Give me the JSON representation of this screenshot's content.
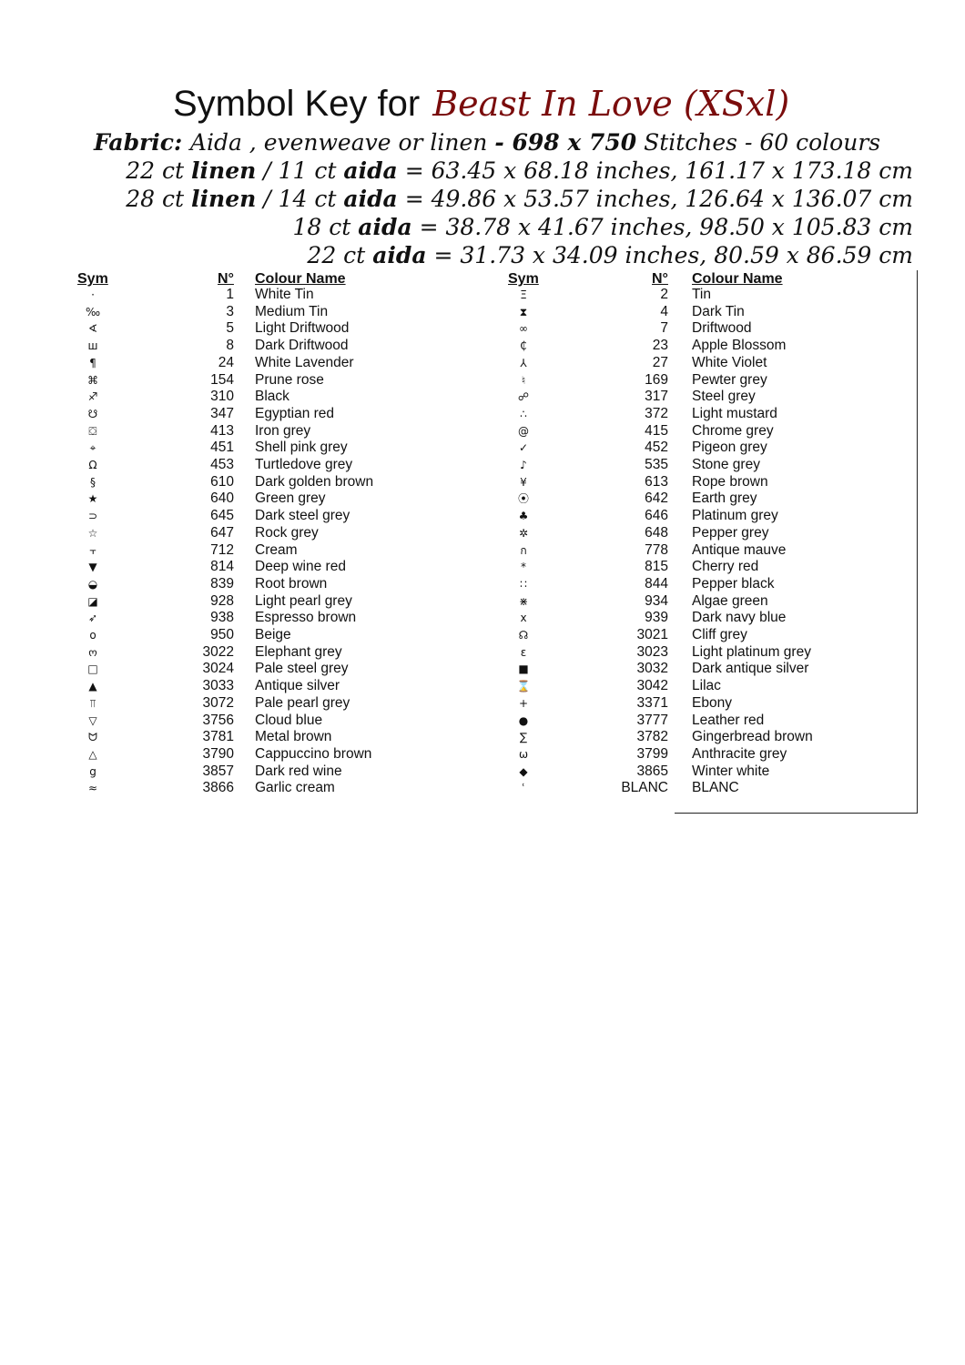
{
  "title": {
    "prefix": "Symbol Key for",
    "pattern": "Beast In Love (XSxl)",
    "pattern_color": "#7a0c0c"
  },
  "fabric_lines": [
    [
      {
        "t": "Fabric: ",
        "b": true
      },
      {
        "t": " Aida , evenweave or  linen ",
        "b": false
      },
      {
        "t": "- 698 x 750",
        "b": true
      },
      {
        "t": " Stitches - 60 colours",
        "b": false
      }
    ],
    [
      {
        "t": "22 ct ",
        "b": false
      },
      {
        "t": "linen",
        "b": true
      },
      {
        "t": " / 11 ct ",
        "b": false
      },
      {
        "t": "aida",
        "b": true
      },
      {
        "t": " = 63.45 x 68.18 inches, 161.17 x 173.18 cm",
        "b": false
      }
    ],
    [
      {
        "t": "28 ct ",
        "b": false
      },
      {
        "t": "linen",
        "b": true
      },
      {
        "t": " / 14 ct ",
        "b": false
      },
      {
        "t": "aida",
        "b": true
      },
      {
        "t": " = 49.86 x 53.57 inches, 126.64 x 136.07 cm",
        "b": false
      }
    ],
    [
      {
        "t": "18 ct ",
        "b": false
      },
      {
        "t": "aida",
        "b": true
      },
      {
        "t": "  = 38.78 x 41.67 inches, 98.50 x 105.83 cm",
        "b": false
      }
    ],
    [
      {
        "t": "22 ct ",
        "b": false
      },
      {
        "t": "aida",
        "b": true
      },
      {
        "t": " = 31.73 x 34.09 inches, 80.59 x 86.59 cm",
        "b": false
      }
    ]
  ],
  "headers": {
    "sym": "Sym",
    "num": "N°",
    "name": "Colour Name"
  },
  "left": [
    [
      "·",
      "1",
      "White Tin"
    ],
    [
      "‰",
      "3",
      "Medium Tin"
    ],
    [
      "∢",
      "5",
      "Light Driftwood"
    ],
    [
      "ш",
      "8",
      "Dark Driftwood"
    ],
    [
      "¶",
      "24",
      "White Lavender"
    ],
    [
      "⌘",
      "154",
      "Prune rose"
    ],
    [
      "♐",
      "310",
      "Black"
    ],
    [
      "☋",
      "347",
      "Egyptian red"
    ],
    [
      "⛋",
      "413",
      "Iron grey"
    ],
    [
      "⌖",
      "451",
      "Shell pink grey"
    ],
    [
      "Ω",
      "453",
      "Turtledove grey"
    ],
    [
      "§",
      "610",
      "Dark golden brown"
    ],
    [
      "★",
      "640",
      "Green grey"
    ],
    [
      "⊃",
      "645",
      "Dark steel grey"
    ],
    [
      "☆",
      "647",
      "Rock grey"
    ],
    [
      "⫟",
      "712",
      "Cream"
    ],
    [
      "▼",
      "814",
      "Deep wine red"
    ],
    [
      "◒",
      "839",
      "Root brown"
    ],
    [
      "◪",
      "928",
      "Light pearl grey"
    ],
    [
      "➶",
      "938",
      "Espresso brown"
    ],
    [
      "o",
      "950",
      "Beige"
    ],
    [
      "ო",
      "3022",
      "Elephant grey"
    ],
    [
      "□",
      "3024",
      "Pale steel grey"
    ],
    [
      "▲",
      "3033",
      "Antique silver"
    ],
    [
      "⫪",
      "3072",
      "Pale pearl grey"
    ],
    [
      "▽",
      "3756",
      "Cloud blue"
    ],
    [
      "ᗢ",
      "3781",
      "Metal brown"
    ],
    [
      "△",
      "3790",
      "Cappuccino brown"
    ],
    [
      "g",
      "3857",
      "Dark red wine"
    ],
    [
      "≈",
      "3866",
      "Garlic cream"
    ]
  ],
  "right": [
    [
      "Ξ",
      "2",
      "Tin"
    ],
    [
      "⧗",
      "4",
      "Dark Tin"
    ],
    [
      "∞",
      "7",
      "Driftwood"
    ],
    [
      "₵",
      "23",
      "Apple Blossom"
    ],
    [
      "⅄",
      "27",
      "White Violet"
    ],
    [
      "♮",
      "169",
      "Pewter grey"
    ],
    [
      "☍",
      "317",
      "Steel grey"
    ],
    [
      "∴",
      "372",
      "Light mustard"
    ],
    [
      "@",
      "415",
      "Chrome grey"
    ],
    [
      "✓",
      "452",
      "Pigeon grey"
    ],
    [
      "♪",
      "535",
      "Stone grey"
    ],
    [
      "¥",
      "613",
      "Rope brown"
    ],
    [
      "⦿",
      "642",
      "Earth grey"
    ],
    [
      "♣",
      "646",
      "Platinum grey"
    ],
    [
      "✲",
      "648",
      "Pepper grey"
    ],
    [
      "ก",
      "778",
      "Antique mauve"
    ],
    [
      "*",
      "815",
      "Cherry red"
    ],
    [
      "∷",
      "844",
      "Pepper black"
    ],
    [
      "⋇",
      "934",
      "Algae green"
    ],
    [
      "x",
      "939",
      "Dark navy blue"
    ],
    [
      "☊",
      "3021",
      "Cliff grey"
    ],
    [
      "ɛ",
      "3023",
      "Light platinum grey"
    ],
    [
      "■",
      "3032",
      "Dark antique silver"
    ],
    [
      "⌛",
      "3042",
      "Lilac"
    ],
    [
      "+",
      "3371",
      "Ebony"
    ],
    [
      "●",
      "3777",
      "Leather red"
    ],
    [
      "∑",
      "3782",
      "Gingerbread brown"
    ],
    [
      "ω",
      "3799",
      "Anthracite grey"
    ],
    [
      "◆",
      "3865",
      "Winter white"
    ],
    [
      "ʿ",
      "BLANC",
      "BLANC"
    ]
  ]
}
